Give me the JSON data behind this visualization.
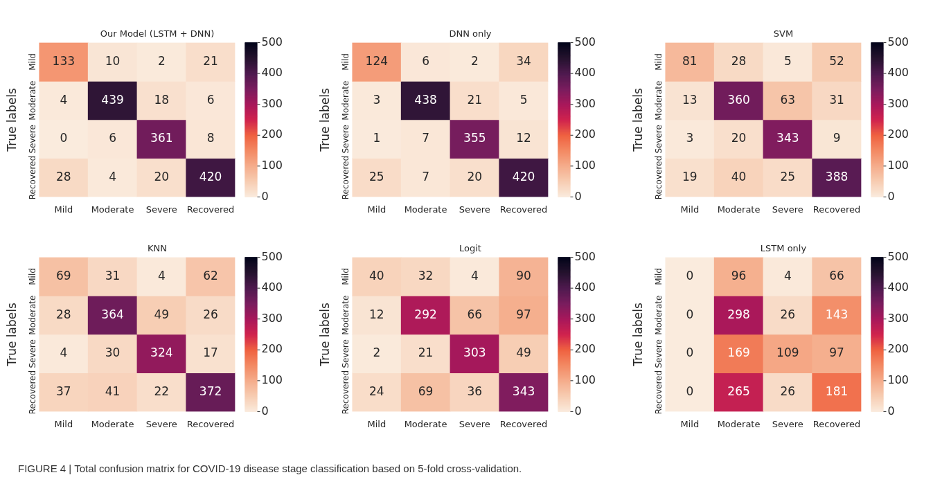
{
  "chart_data": [
    {
      "type": "heatmap",
      "title": "Our Model (LSTM + DNN)",
      "ylabel": "True labels",
      "categories": [
        "Mild",
        "Moderate",
        "Severe",
        "Recovered"
      ],
      "y_categories": [
        "Mild",
        "Moderate",
        "Severe",
        "Recovered"
      ],
      "cells": [
        [
          133,
          10,
          2,
          21
        ],
        [
          4,
          439,
          18,
          6
        ],
        [
          0,
          6,
          361,
          8
        ],
        [
          28,
          4,
          20,
          420
        ]
      ],
      "clim": [
        0,
        500
      ],
      "cticks": [
        0,
        100,
        200,
        300,
        400,
        500
      ],
      "data_labels": true,
      "annotations": [
        "FIGURE 4 | Total confusion matrix for COVID-19 disease stage classification based on 5-fold cross-validation."
      ]
    },
    {
      "type": "heatmap",
      "title": "DNN only",
      "ylabel": "True labels",
      "categories": [
        "Mild",
        "Moderate",
        "Severe",
        "Recovered"
      ],
      "y_categories": [
        "Mild",
        "Moderate",
        "Severe",
        "Recovered"
      ],
      "cells": [
        [
          124,
          6,
          2,
          34
        ],
        [
          3,
          438,
          21,
          5
        ],
        [
          1,
          7,
          355,
          12
        ],
        [
          25,
          7,
          20,
          420
        ]
      ],
      "clim": [
        0,
        500
      ],
      "cticks": [
        0,
        100,
        200,
        300,
        400,
        500
      ],
      "data_labels": true
    },
    {
      "type": "heatmap",
      "title": "SVM",
      "ylabel": "True labels",
      "categories": [
        "Mild",
        "Moderate",
        "Severe",
        "Recovered"
      ],
      "y_categories": [
        "Mild",
        "Moderate",
        "Severe",
        "Recovered"
      ],
      "cells": [
        [
          81,
          28,
          5,
          52
        ],
        [
          13,
          360,
          63,
          31
        ],
        [
          3,
          20,
          343,
          9
        ],
        [
          19,
          40,
          25,
          388
        ]
      ],
      "clim": [
        0,
        500
      ],
      "cticks": [
        0,
        100,
        200,
        300,
        400,
        500
      ],
      "data_labels": true
    },
    {
      "type": "heatmap",
      "title": "KNN",
      "ylabel": "True labels",
      "categories": [
        "Mild",
        "Moderate",
        "Severe",
        "Recovered"
      ],
      "y_categories": [
        "Mild",
        "Moderate",
        "Severe",
        "Recovered"
      ],
      "cells": [
        [
          69,
          31,
          4,
          62
        ],
        [
          28,
          364,
          49,
          26
        ],
        [
          4,
          30,
          324,
          17
        ],
        [
          37,
          41,
          22,
          372
        ]
      ],
      "clim": [
        0,
        500
      ],
      "cticks": [
        0,
        100,
        200,
        300,
        400,
        500
      ],
      "data_labels": true
    },
    {
      "type": "heatmap",
      "title": "Logit",
      "ylabel": "True labels",
      "categories": [
        "Mild",
        "Moderate",
        "Severe",
        "Recovered"
      ],
      "y_categories": [
        "Mild",
        "Moderate",
        "Severe",
        "Recovered"
      ],
      "cells": [
        [
          40,
          32,
          4,
          90
        ],
        [
          12,
          292,
          66,
          97
        ],
        [
          2,
          21,
          303,
          49
        ],
        [
          24,
          69,
          36,
          343
        ]
      ],
      "clim": [
        0,
        500
      ],
      "cticks": [
        0,
        100,
        200,
        300,
        400,
        500
      ],
      "data_labels": true
    },
    {
      "type": "heatmap",
      "title": "LSTM only",
      "ylabel": "True labels",
      "categories": [
        "Mild",
        "Moderate",
        "Severe",
        "Recovered"
      ],
      "y_categories": [
        "Mild",
        "Moderate",
        "Severe",
        "Recovered"
      ],
      "cells": [
        [
          0,
          96,
          4,
          66
        ],
        [
          0,
          298,
          26,
          143
        ],
        [
          0,
          169,
          109,
          97
        ],
        [
          0,
          265,
          26,
          181
        ]
      ],
      "clim": [
        0,
        500
      ],
      "cticks": [
        0,
        100,
        200,
        300,
        400,
        500
      ],
      "data_labels": true
    }
  ]
}
